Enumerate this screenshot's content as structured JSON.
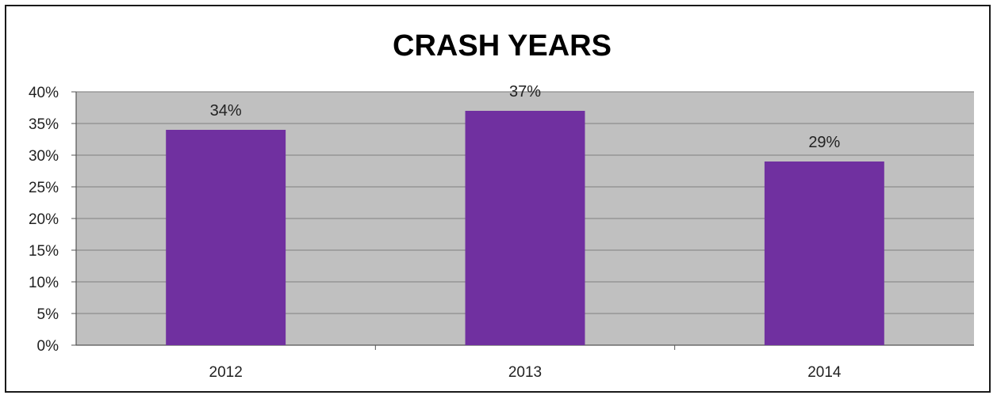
{
  "chart_data": {
    "type": "bar",
    "title": "CRASH YEARS",
    "categories": [
      "2012",
      "2013",
      "2014"
    ],
    "values": [
      34,
      37,
      29
    ],
    "data_labels": [
      "34%",
      "37%",
      "29%"
    ],
    "ylim": [
      0,
      40
    ],
    "yticks": [
      0,
      5,
      10,
      15,
      20,
      25,
      30,
      35,
      40
    ],
    "ytick_labels": [
      "0%",
      "5%",
      "10%",
      "15%",
      "20%",
      "25%",
      "30%",
      "35%",
      "40%"
    ],
    "xlabel": "",
    "ylabel": "",
    "grid": true,
    "legend": "none",
    "colors": {
      "bar": "#7030a0",
      "plot_background": "#c0c0c0",
      "gridline": "#8c8c8c",
      "frame": "#1a1a1a"
    }
  }
}
